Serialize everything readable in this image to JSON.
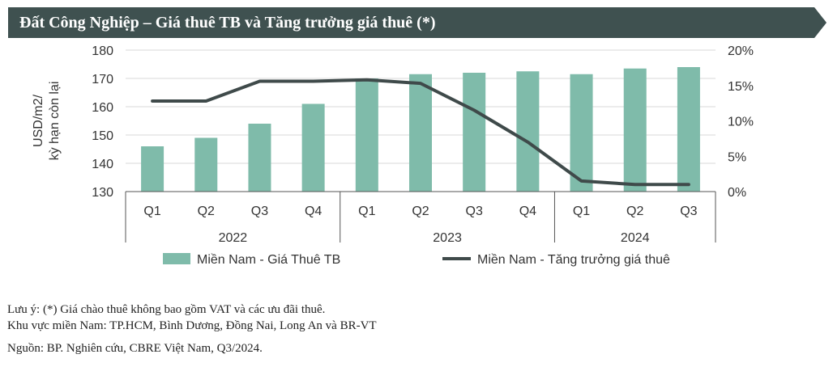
{
  "header": {
    "title": "Đất Công Nghiệp – Giá thuê TB và Tăng trưởng giá thuê (*)",
    "bg_color": "#3f5150"
  },
  "chart_data": {
    "type": "bar",
    "categories": [
      "Q1",
      "Q2",
      "Q3",
      "Q4",
      "Q1",
      "Q2",
      "Q3",
      "Q4",
      "Q1",
      "Q2",
      "Q3"
    ],
    "groups": [
      {
        "label": "2022",
        "count": 4
      },
      {
        "label": "2023",
        "count": 4
      },
      {
        "label": "2024",
        "count": 3
      }
    ],
    "series": [
      {
        "name": "Miền Nam - Giá Thuê TB",
        "kind": "bar",
        "axis": "left",
        "color": "#7fbbaa",
        "values": [
          146,
          149,
          154,
          161,
          170,
          171.5,
          172,
          172.5,
          171.5,
          173.5,
          174
        ]
      },
      {
        "name": "Miền Nam - Tăng trưởng giá thuê",
        "kind": "line",
        "axis": "right",
        "color": "#3f4a4a",
        "values": [
          12.8,
          12.8,
          15.6,
          15.6,
          15.8,
          15.3,
          11.5,
          7.0,
          1.5,
          1.0,
          1.0
        ]
      }
    ],
    "ylabel_lines": [
      "USD/m2/",
      "kỳ hạn còn lại"
    ],
    "ylim": [
      130,
      180
    ],
    "yticks": [
      "130",
      "140",
      "150",
      "160",
      "170",
      "180"
    ],
    "y2lim": [
      0,
      20
    ],
    "y2ticks": [
      "0%",
      "5%",
      "10%",
      "15%",
      "20%"
    ],
    "grid": true,
    "legend_position": "bottom"
  },
  "notes": {
    "line1": "Lưu ý: (*) Giá chào thuê không bao gồm VAT và các ưu đãi thuê.",
    "line2": "Khu vực miền Nam: TP.HCM, Bình Dương, Đồng Nai, Long An và BR-VT",
    "source": "Nguồn: BP. Nghiên cứu, CBRE Việt Nam, Q3/2024."
  }
}
